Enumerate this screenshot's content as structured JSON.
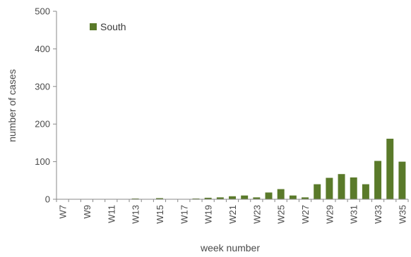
{
  "chart_data": {
    "type": "bar",
    "title": "",
    "xlabel": "week number",
    "ylabel": "number of cases",
    "ylim": [
      0,
      500
    ],
    "yticks": [
      0,
      100,
      200,
      300,
      400,
      500
    ],
    "grid": false,
    "legend_position": "top-left",
    "categories": [
      "W7",
      "W8",
      "W9",
      "W10",
      "W11",
      "W12",
      "W13",
      "W14",
      "W15",
      "W16",
      "W17",
      "W18",
      "W19",
      "W20",
      "W21",
      "W22",
      "W23",
      "W24",
      "W25",
      "W26",
      "W27",
      "W28",
      "W29",
      "W30",
      "W31",
      "W32",
      "W33",
      "W34",
      "W35"
    ],
    "x_tick_labels": [
      "W7",
      "W9",
      "W11",
      "W13",
      "W15",
      "W17",
      "W19",
      "W21",
      "W23",
      "W25",
      "W27",
      "W29",
      "W31",
      "W33",
      "W35"
    ],
    "series": [
      {
        "name": "South",
        "color": "#5a7a2a",
        "values": [
          0,
          0,
          0,
          0,
          0,
          0,
          2,
          0,
          3,
          0,
          0,
          2,
          4,
          5,
          8,
          10,
          5,
          18,
          27,
          10,
          5,
          40,
          57,
          67,
          58,
          40,
          102,
          161,
          100
        ]
      }
    ]
  }
}
